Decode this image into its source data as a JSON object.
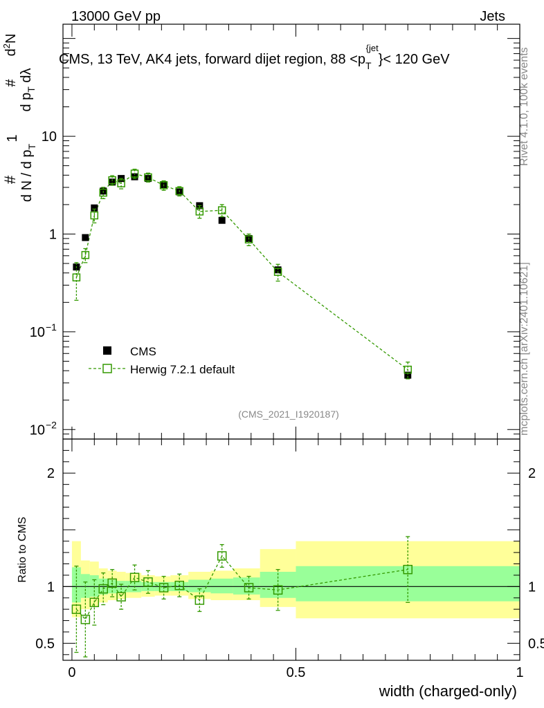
{
  "header": {
    "energy": "13000 GeV pp",
    "category": "Jets"
  },
  "side_labels": {
    "rivet": "Rivet 4.1.0,  100k events",
    "site": "mcplots.cern.ch [arXiv:2401.10621]"
  },
  "analysis_tag": "(CMS_2021_I1920187)",
  "chart_data": [
    {
      "type": "scatter",
      "title": "CMS, 13 TeV, AK4 jets, forward dijet region, 88 <p_T^{jet}< 120 GeV",
      "title_parts": {
        "prefix": "CMS, 13 TeV, AK4 jets, forward dijet region, 88 <p",
        "sub": "T",
        "sup": "{jet",
        "suffix": "}< 120 GeV"
      },
      "ylabel": "1/N dN/dλ (per p_T)",
      "yscale": "log",
      "ylim": [
        0.008,
        140
      ],
      "xlim": [
        -0.02,
        1.0
      ],
      "y_ticks": [
        {
          "value": 10,
          "label": "10"
        },
        {
          "value": 1,
          "label": "1"
        },
        {
          "value": 0.1,
          "base": "10",
          "exp": "−1"
        },
        {
          "value": 0.01,
          "base": "10",
          "exp": "−2"
        }
      ],
      "legend": {
        "placement": "lower-left",
        "entries": [
          "CMS",
          "Herwig 7.2.1 default"
        ]
      },
      "series": [
        {
          "name": "CMS",
          "color": "#000000",
          "marker": "filled-square",
          "x": [
            0.01,
            0.03,
            0.05,
            0.07,
            0.09,
            0.11,
            0.14,
            0.17,
            0.205,
            0.24,
            0.285,
            0.335,
            0.395,
            0.46,
            0.75
          ],
          "y": [
            0.46,
            0.92,
            1.85,
            2.75,
            3.4,
            3.7,
            3.85,
            3.7,
            3.2,
            2.7,
            1.95,
            1.38,
            0.9,
            0.43,
            0.036
          ]
        },
        {
          "name": "Herwig 7.2.1 default",
          "color": "#339900",
          "marker": "open-square",
          "x": [
            0.01,
            0.03,
            0.05,
            0.07,
            0.09,
            0.11,
            0.14,
            0.17,
            0.205,
            0.24,
            0.285,
            0.335,
            0.395,
            0.46,
            0.75
          ],
          "y": [
            0.36,
            0.61,
            1.55,
            2.65,
            3.55,
            3.3,
            4.15,
            3.8,
            3.15,
            2.75,
            1.7,
            1.75,
            0.88,
            0.41,
            0.041
          ],
          "err_lo": [
            0.15,
            0.1,
            0.25,
            0.35,
            0.4,
            0.4,
            0.45,
            0.4,
            0.35,
            0.3,
            0.25,
            0.25,
            0.12,
            0.08,
            0.008
          ],
          "err_hi": [
            0.15,
            0.1,
            0.25,
            0.35,
            0.4,
            0.4,
            0.45,
            0.4,
            0.35,
            0.3,
            0.25,
            0.25,
            0.12,
            0.08,
            0.008
          ]
        }
      ]
    },
    {
      "type": "scatter",
      "title": "",
      "xlabel": "width (charged-only)",
      "ylabel": "Ratio to CMS",
      "ylim": [
        0.35,
        2.3
      ],
      "xlim": [
        -0.02,
        1.0
      ],
      "x_ticks": [
        {
          "value": 0,
          "label": "0"
        },
        {
          "value": 0.5,
          "label": "0.5"
        },
        {
          "value": 1,
          "label": "1"
        }
      ],
      "y_ticks": [
        {
          "value": 2,
          "label": "2"
        },
        {
          "value": 1,
          "label": "1"
        },
        {
          "value": 0.5,
          "label": "0.5"
        }
      ],
      "reference_line": 1,
      "uncertainty_bands": {
        "bins": [
          [
            0.0,
            0.02
          ],
          [
            0.02,
            0.04
          ],
          [
            0.04,
            0.06
          ],
          [
            0.06,
            0.08
          ],
          [
            0.08,
            0.1
          ],
          [
            0.1,
            0.12
          ],
          [
            0.12,
            0.155
          ],
          [
            0.155,
            0.185
          ],
          [
            0.185,
            0.22
          ],
          [
            0.22,
            0.26
          ],
          [
            0.26,
            0.31
          ],
          [
            0.31,
            0.36
          ],
          [
            0.36,
            0.42
          ],
          [
            0.42,
            0.5
          ],
          [
            0.5,
            1.0
          ]
        ],
        "total": [
          [
            0.73,
            1.4
          ],
          [
            0.8,
            1.23
          ],
          [
            0.82,
            1.22
          ],
          [
            0.86,
            1.16
          ],
          [
            0.88,
            1.14
          ],
          [
            0.89,
            1.13
          ],
          [
            0.9,
            1.12
          ],
          [
            0.91,
            1.1
          ],
          [
            0.92,
            1.09
          ],
          [
            0.92,
            1.1
          ],
          [
            0.89,
            1.13
          ],
          [
            0.88,
            1.14
          ],
          [
            0.88,
            1.16
          ],
          [
            0.82,
            1.33
          ],
          [
            0.72,
            1.4
          ]
        ],
        "stat": [
          [
            0.86,
            1.17
          ],
          [
            0.9,
            1.11
          ],
          [
            0.91,
            1.1
          ],
          [
            0.93,
            1.07
          ],
          [
            0.94,
            1.06
          ],
          [
            0.95,
            1.05
          ],
          [
            0.95,
            1.05
          ],
          [
            0.96,
            1.04
          ],
          [
            0.96,
            1.04
          ],
          [
            0.96,
            1.04
          ],
          [
            0.95,
            1.06
          ],
          [
            0.94,
            1.07
          ],
          [
            0.93,
            1.08
          ],
          [
            0.9,
            1.13
          ],
          [
            0.87,
            1.18
          ]
        ],
        "total_color": "#ffff99",
        "stat_color": "#99ff99"
      },
      "series": [
        {
          "name": "Herwig 7.2.1 default",
          "color": "#339900",
          "marker": "open-square",
          "x": [
            0.01,
            0.03,
            0.05,
            0.07,
            0.09,
            0.11,
            0.14,
            0.17,
            0.205,
            0.24,
            0.285,
            0.335,
            0.395,
            0.46,
            0.75
          ],
          "y": [
            0.8,
            0.71,
            0.86,
            0.98,
            1.03,
            0.91,
            1.08,
            1.04,
            0.99,
            1.01,
            0.88,
            1.27,
            0.99,
            0.97,
            1.15
          ],
          "err_lo": [
            0.38,
            0.33,
            0.2,
            0.14,
            0.12,
            0.11,
            0.11,
            0.1,
            0.1,
            0.1,
            0.1,
            0.1,
            0.1,
            0.18,
            0.29
          ],
          "err_hi": [
            0.38,
            0.33,
            0.2,
            0.14,
            0.12,
            0.11,
            0.11,
            0.1,
            0.1,
            0.1,
            0.1,
            0.1,
            0.1,
            0.18,
            0.29
          ]
        }
      ]
    }
  ]
}
